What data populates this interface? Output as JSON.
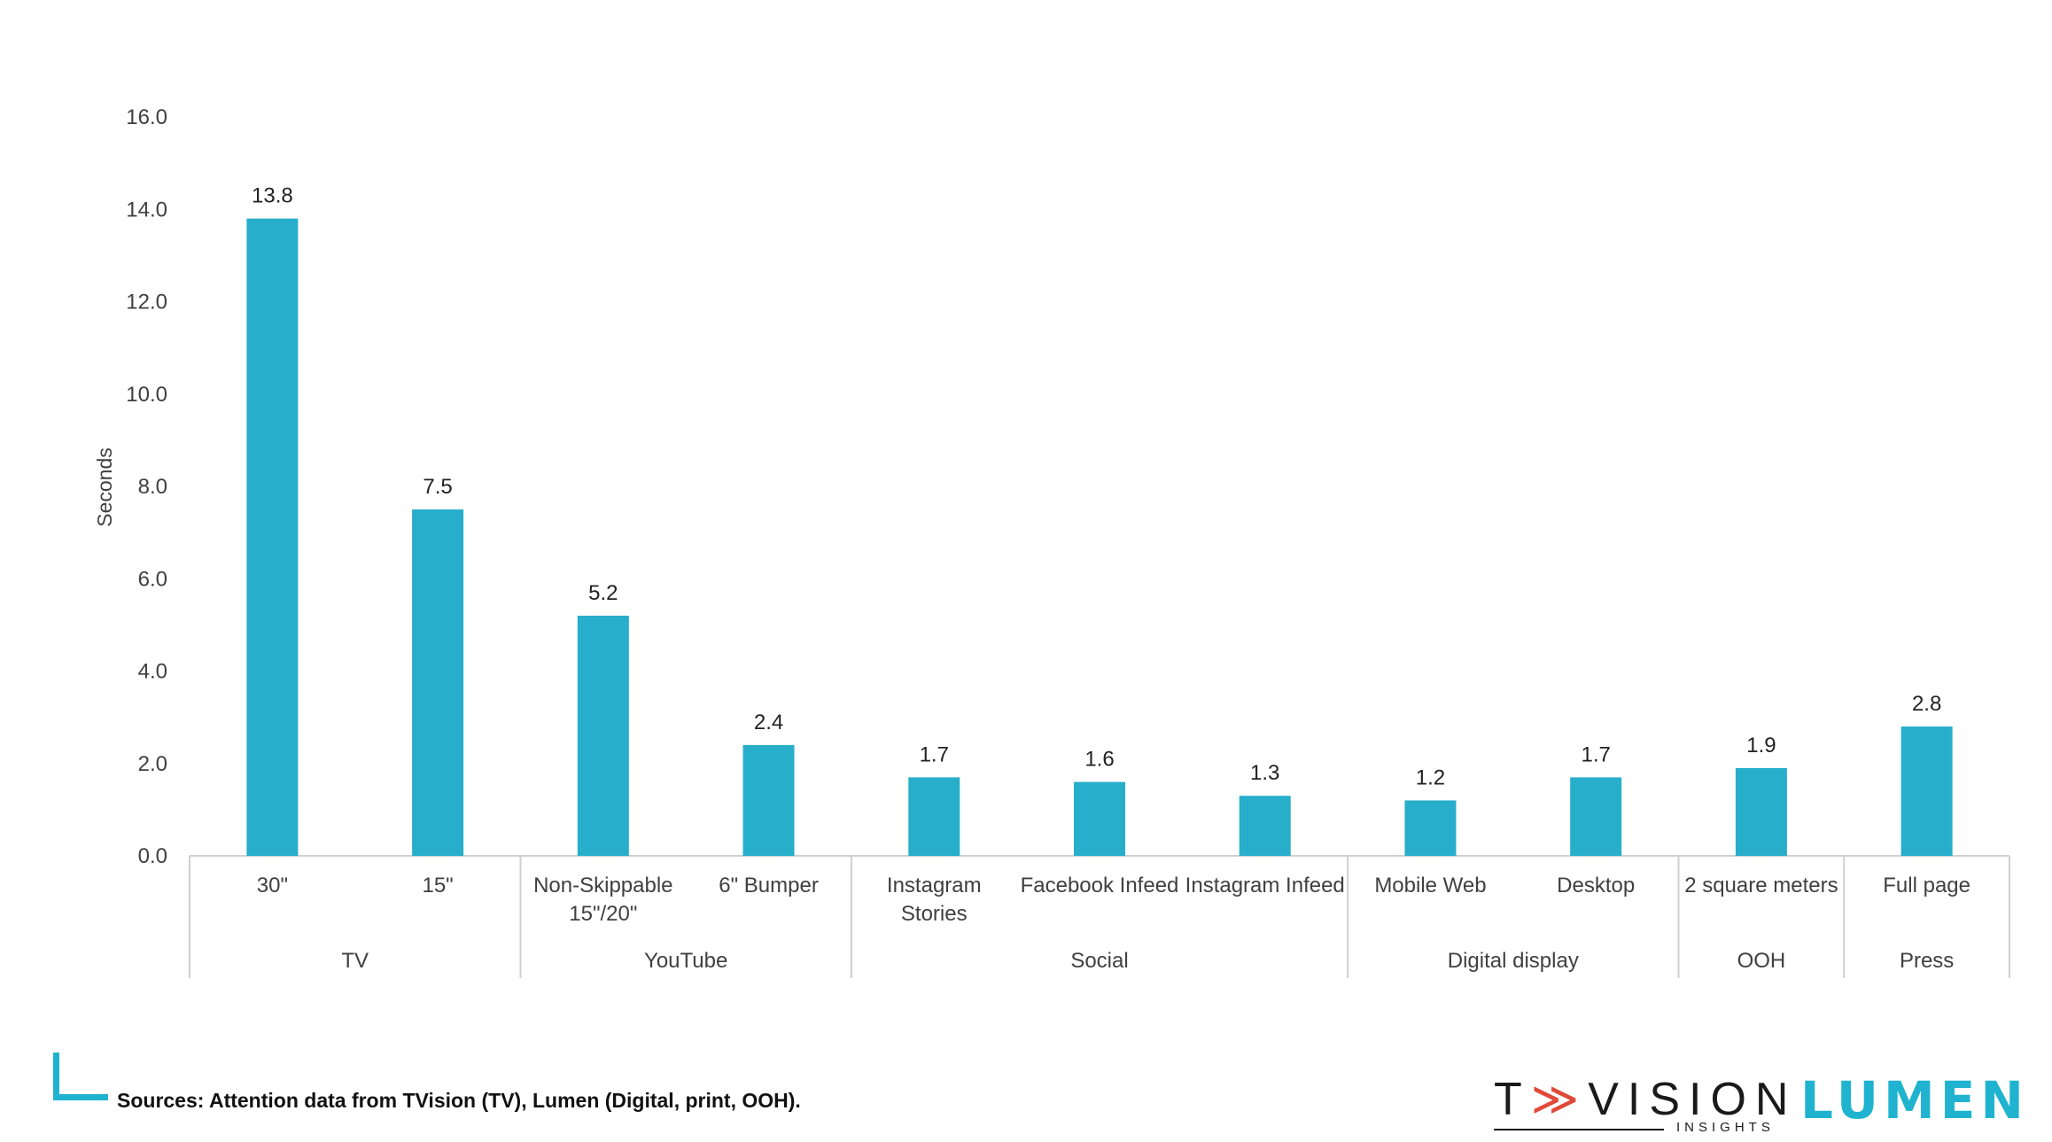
{
  "chart_data": {
    "type": "bar",
    "ylabel": "Seconds",
    "ylim": [
      0,
      16
    ],
    "yticks": [
      "0.0",
      "2.0",
      "4.0",
      "6.0",
      "8.0",
      "10.0",
      "12.0",
      "14.0",
      "16.0"
    ],
    "grid": false,
    "color": "#27aecb",
    "groups": [
      {
        "name": "TV",
        "start": 0,
        "count": 2
      },
      {
        "name": "YouTube",
        "start": 2,
        "count": 2
      },
      {
        "name": "Social",
        "start": 4,
        "count": 3
      },
      {
        "name": "Digital display",
        "start": 7,
        "count": 2
      },
      {
        "name": "OOH",
        "start": 9,
        "count": 1
      },
      {
        "name": "Press",
        "start": 10,
        "count": 1
      }
    ],
    "categories": [
      [
        "30\""
      ],
      [
        "15\""
      ],
      [
        "Non-Skippable",
        "15\"/20\""
      ],
      [
        "6\" Bumper"
      ],
      [
        "Instagram",
        "Stories"
      ],
      [
        "Facebook Infeed"
      ],
      [
        "Instagram Infeed"
      ],
      [
        "Mobile Web"
      ],
      [
        "Desktop"
      ],
      [
        "2 square meters"
      ],
      [
        "Full page"
      ]
    ],
    "values": [
      13.8,
      7.5,
      5.2,
      2.4,
      1.7,
      1.6,
      1.3,
      1.2,
      1.7,
      1.9,
      2.8
    ],
    "data_labels": [
      "13.8",
      "7.5",
      "5.2",
      "2.4",
      "1.7",
      "1.6",
      "1.3",
      "1.2",
      "1.7",
      "1.9",
      "2.8"
    ]
  },
  "footer": {
    "source": "Sources: Attention data from TVision (TV), Lumen (Digital, print, OOH).",
    "tvision_pre": "T",
    "tvision_arrow": "≫",
    "tvision_post": "VISION",
    "tvision_sub": "INSIGHTS",
    "lumen": "LUMEN"
  }
}
